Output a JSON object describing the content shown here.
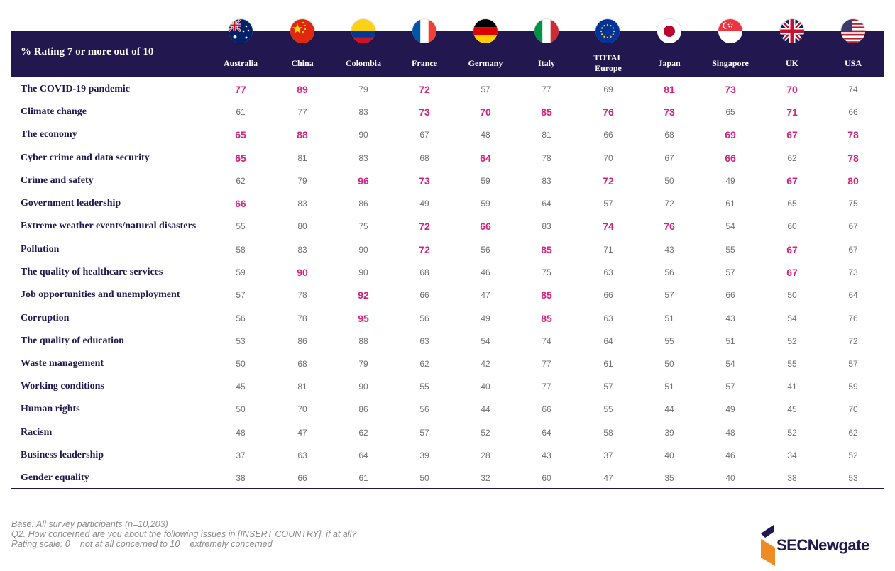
{
  "header": {
    "title": "% Rating 7 or more out of 10"
  },
  "columns": [
    {
      "label": "Australia",
      "flag": "flag-australia-icon"
    },
    {
      "label": "China",
      "flag": "flag-china-icon"
    },
    {
      "label": "Colombia",
      "flag": "flag-colombia-icon"
    },
    {
      "label": "France",
      "flag": "flag-france-icon"
    },
    {
      "label": "Germany",
      "flag": "flag-germany-icon"
    },
    {
      "label": "Italy",
      "flag": "flag-italy-icon"
    },
    {
      "label": "TOTAL Europe",
      "line1": "TOTAL",
      "line2": "Europe",
      "flag": "flag-eu-icon"
    },
    {
      "label": "Japan",
      "flag": "flag-japan-icon"
    },
    {
      "label": "Singapore",
      "flag": "flag-singapore-icon"
    },
    {
      "label": "UK",
      "flag": "flag-uk-icon"
    },
    {
      "label": "USA",
      "flag": "flag-usa-icon"
    }
  ],
  "rows": [
    {
      "label": "The COVID-19 pandemic",
      "values": [
        "77",
        "89",
        "79",
        "72",
        "57",
        "77",
        "69",
        "81",
        "73",
        "70",
        "74"
      ],
      "highlight": [
        1,
        1,
        0,
        1,
        0,
        0,
        0,
        1,
        1,
        1,
        0
      ]
    },
    {
      "label": "Climate change",
      "values": [
        "61",
        "77",
        "83",
        "73",
        "70",
        "85",
        "76",
        "73",
        "65",
        "71",
        "66"
      ],
      "highlight": [
        0,
        0,
        0,
        1,
        1,
        1,
        1,
        1,
        0,
        1,
        0
      ]
    },
    {
      "label": "The economy",
      "values": [
        "65",
        "88",
        "90",
        "67",
        "48",
        "81",
        "66",
        "68",
        "69",
        "67",
        "78"
      ],
      "highlight": [
        1,
        1,
        0,
        0,
        0,
        0,
        0,
        0,
        1,
        1,
        1
      ]
    },
    {
      "label": "Cyber crime and data security",
      "values": [
        "65",
        "81",
        "83",
        "68",
        "64",
        "78",
        "70",
        "67",
        "66",
        "62",
        "78"
      ],
      "highlight": [
        1,
        0,
        0,
        0,
        1,
        0,
        0,
        0,
        1,
        0,
        1
      ]
    },
    {
      "label": "Crime and safety",
      "values": [
        "62",
        "79",
        "96",
        "73",
        "59",
        "83",
        "72",
        "50",
        "49",
        "67",
        "80"
      ],
      "highlight": [
        0,
        0,
        1,
        1,
        0,
        0,
        1,
        0,
        0,
        1,
        1
      ]
    },
    {
      "label": "Government leadership",
      "values": [
        "66",
        "83",
        "86",
        "49",
        "59",
        "64",
        "57",
        "72",
        "61",
        "65",
        "75"
      ],
      "highlight": [
        1,
        0,
        0,
        0,
        0,
        0,
        0,
        0,
        0,
        0,
        0
      ]
    },
    {
      "label": "Extreme weather events/natural disasters",
      "values": [
        "55",
        "80",
        "75",
        "72",
        "66",
        "83",
        "74",
        "76",
        "54",
        "60",
        "67"
      ],
      "highlight": [
        0,
        0,
        0,
        1,
        1,
        0,
        1,
        1,
        0,
        0,
        0
      ]
    },
    {
      "label": "Pollution",
      "values": [
        "58",
        "83",
        "90",
        "72",
        "56",
        "85",
        "71",
        "43",
        "55",
        "67",
        "67"
      ],
      "highlight": [
        0,
        0,
        0,
        1,
        0,
        1,
        0,
        0,
        0,
        1,
        0
      ]
    },
    {
      "label": "The quality of healthcare services",
      "values": [
        "59",
        "90",
        "90",
        "68",
        "46",
        "75",
        "63",
        "56",
        "57",
        "67",
        "73"
      ],
      "highlight": [
        0,
        1,
        0,
        0,
        0,
        0,
        0,
        0,
        0,
        1,
        0
      ]
    },
    {
      "label": "Job opportunities and unemployment",
      "values": [
        "57",
        "78",
        "92",
        "66",
        "47",
        "85",
        "66",
        "57",
        "66",
        "50",
        "64"
      ],
      "highlight": [
        0,
        0,
        1,
        0,
        0,
        1,
        0,
        0,
        0,
        0,
        0
      ]
    },
    {
      "label": "Corruption",
      "values": [
        "56",
        "78",
        "95",
        "56",
        "49",
        "85",
        "63",
        "51",
        "43",
        "54",
        "76"
      ],
      "highlight": [
        0,
        0,
        1,
        0,
        0,
        1,
        0,
        0,
        0,
        0,
        0
      ]
    },
    {
      "label": "The quality of education",
      "values": [
        "53",
        "86",
        "88",
        "63",
        "54",
        "74",
        "64",
        "55",
        "51",
        "52",
        "72"
      ],
      "highlight": [
        0,
        0,
        0,
        0,
        0,
        0,
        0,
        0,
        0,
        0,
        0
      ]
    },
    {
      "label": "Waste management",
      "values": [
        "50",
        "68",
        "79",
        "62",
        "42",
        "77",
        "61",
        "50",
        "54",
        "55",
        "57"
      ],
      "highlight": [
        0,
        0,
        0,
        0,
        0,
        0,
        0,
        0,
        0,
        0,
        0
      ]
    },
    {
      "label": "Working conditions",
      "values": [
        "45",
        "81",
        "90",
        "55",
        "40",
        "77",
        "57",
        "51",
        "57",
        "41",
        "59"
      ],
      "highlight": [
        0,
        0,
        0,
        0,
        0,
        0,
        0,
        0,
        0,
        0,
        0
      ]
    },
    {
      "label": "Human rights",
      "values": [
        "50",
        "70",
        "86",
        "56",
        "44",
        "66",
        "55",
        "44",
        "49",
        "45",
        "70"
      ],
      "highlight": [
        0,
        0,
        0,
        0,
        0,
        0,
        0,
        0,
        0,
        0,
        0
      ]
    },
    {
      "label": "Racism",
      "values": [
        "48",
        "47",
        "62",
        "57",
        "52",
        "64",
        "58",
        "39",
        "48",
        "52",
        "62"
      ],
      "highlight": [
        0,
        0,
        0,
        0,
        0,
        0,
        0,
        0,
        0,
        0,
        0
      ]
    },
    {
      "label": "Business leadership",
      "values": [
        "37",
        "63",
        "64",
        "39",
        "28",
        "43",
        "37",
        "40",
        "46",
        "34",
        "52"
      ],
      "highlight": [
        0,
        0,
        0,
        0,
        0,
        0,
        0,
        0,
        0,
        0,
        0
      ]
    },
    {
      "label": "Gender equality",
      "values": [
        "38",
        "66",
        "61",
        "50",
        "32",
        "60",
        "47",
        "35",
        "40",
        "38",
        "53"
      ],
      "highlight": [
        0,
        0,
        0,
        0,
        0,
        0,
        0,
        0,
        0,
        0,
        0
      ]
    }
  ],
  "footer": {
    "base": "Base: All survey participants (n=10,203)",
    "question": "Q2. How concerned are you about the following issues in [INSERT COUNTRY], if at all?",
    "scale": "Rating scale: 0 = not at all concerned to 10 = extremely concerned"
  },
  "logo": {
    "text": "SECNewgate"
  },
  "colors": {
    "navy": "#22174e",
    "highlight": "#d3237f",
    "value": "#707070",
    "footnote": "#8a8a8a",
    "logo_orange": "#f08a24"
  }
}
